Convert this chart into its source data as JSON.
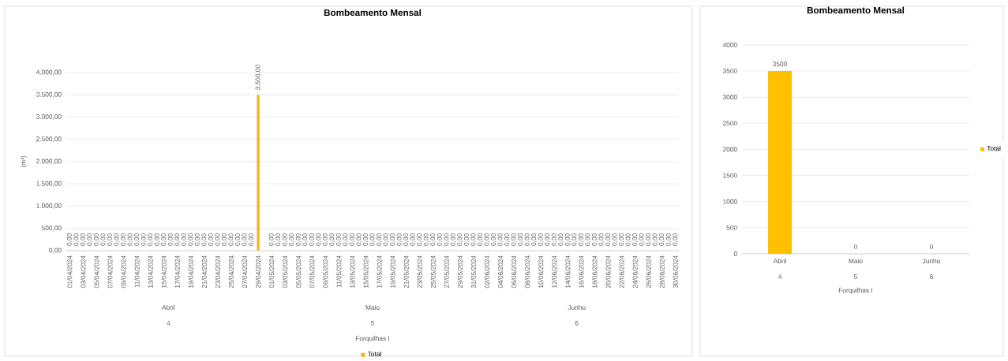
{
  "chart_data": [
    {
      "type": "bar",
      "title": "Bombeamento Mensal",
      "ylabel": "(m³)",
      "xlabel": "Forquilhas I",
      "categories": [
        "01/04/2024",
        null,
        "03/04/2024",
        null,
        "05/04/2024",
        null,
        "07/04/2024",
        null,
        "09/04/2024",
        null,
        "11/04/2024",
        null,
        "13/04/2024",
        null,
        "15/04/2024",
        null,
        "17/04/2024",
        null,
        "19/04/2024",
        null,
        "21/04/2024",
        null,
        "23/04/2024",
        null,
        "25/04/2024",
        null,
        "27/04/2024",
        null,
        "29/04/2024",
        null,
        "01/05/2024",
        null,
        "03/05/2024",
        null,
        "05/05/2024",
        null,
        "07/05/2024",
        null,
        "09/05/2024",
        null,
        "11/05/2024",
        null,
        "13/05/2024",
        null,
        "15/05/2024",
        null,
        "17/05/2024",
        null,
        "19/05/2024",
        null,
        "21/05/2024",
        null,
        "23/05/2024",
        null,
        "25/05/2024",
        null,
        "27/05/2024",
        null,
        "29/05/2024",
        null,
        "31/05/2024",
        null,
        "02/06/2024",
        null,
        "04/06/2024",
        null,
        "06/06/2024",
        null,
        "08/06/2024",
        null,
        "10/06/2024",
        null,
        "12/06/2024",
        null,
        "14/06/2024",
        null,
        "16/06/2024",
        null,
        "18/06/2024",
        null,
        "20/06/2024",
        null,
        "22/06/2024",
        null,
        "24/06/2024",
        null,
        "26/06/2024",
        null,
        "28/06/2024",
        null,
        "30/06/2024"
      ],
      "series": [
        {
          "name": "Total",
          "color": "#f5b01a",
          "values": [
            0,
            0,
            0,
            0,
            0,
            0,
            0,
            0,
            0,
            0,
            0,
            0,
            0,
            0,
            0,
            0,
            0,
            0,
            0,
            0,
            0,
            0,
            0,
            0,
            0,
            0,
            0,
            0,
            3500,
            null,
            0,
            0,
            0,
            0,
            0,
            0,
            0,
            0,
            0,
            0,
            0,
            0,
            0,
            0,
            0,
            0,
            0,
            0,
            0,
            0,
            0,
            0,
            0,
            0,
            0,
            0,
            0,
            0,
            0,
            0,
            0,
            0,
            0,
            0,
            0,
            0,
            0,
            0,
            0,
            0,
            0,
            0,
            0,
            0,
            0,
            0,
            0,
            0,
            0,
            0,
            0,
            0,
            0,
            0,
            0,
            0,
            0,
            0,
            0,
            0,
            0
          ],
          "value_labels": [
            "0,00",
            "0,00",
            "0,00",
            "0,00",
            "0,00",
            "0,00",
            "0,00",
            "0,00",
            "0,00",
            "0,00",
            "0,00",
            "0,00",
            "0,00",
            "0,00",
            "0,00",
            "0,00",
            "0,00",
            "0,00",
            "0,00",
            "0,00",
            "0,00",
            "0,00",
            "0,00",
            "0,00",
            "0,00",
            "0,00",
            "0,00",
            "0,00",
            "3.500,00",
            null,
            "0,00",
            "0,00",
            "0,00",
            "0,00",
            "0,00",
            "0,00",
            "0,00",
            "0,00",
            "0,00",
            "0,00",
            "0,00",
            "0,00",
            "0,00",
            "0,00",
            "0,00",
            "0,00",
            "0,00",
            "0,00",
            "0,00",
            "0,00",
            "0,00",
            "0,00",
            "0,00",
            "0,00",
            "0,00",
            "0,00",
            "0,00",
            "0,00",
            "0,00",
            "0,00",
            "0,00",
            "0,00",
            "0,00",
            "0,00",
            "0,00",
            "0,00",
            "0,00",
            "0,00",
            "0,00",
            "0,00",
            "0,00",
            "0,00",
            "0,00",
            "0,00",
            "0,00",
            "0,00",
            "0,00",
            "0,00",
            "0,00",
            "0,00",
            "0,00",
            "0,00",
            "0,00",
            "0,00",
            "0,00",
            "0,00",
            "0,00",
            "0,00",
            "0,00",
            "0,00",
            "0,00"
          ]
        }
      ],
      "ylim": [
        0,
        4000
      ],
      "yticks": [
        {
          "value": 0,
          "label": "0,00"
        },
        {
          "value": 500,
          "label": "500,00"
        },
        {
          "value": 1000,
          "label": "1.000,00"
        },
        {
          "value": 1500,
          "label": "1.500,00"
        },
        {
          "value": 2000,
          "label": "2.000,00"
        },
        {
          "value": 2500,
          "label": "2.500,00"
        },
        {
          "value": 3000,
          "label": "3.000,00"
        },
        {
          "value": 3500,
          "label": "3.500,00"
        },
        {
          "value": 4000,
          "label": "4.000,00"
        }
      ],
      "annotations": [
        "Abril",
        "4",
        "Maio",
        "5",
        "Junho",
        "6"
      ],
      "grid": "y",
      "legend": "bottom"
    },
    {
      "type": "bar",
      "title": "Bombeamento Mensal",
      "xlabel": "Forquilhas I",
      "categories": [
        "Abril",
        "Maio",
        "Junho"
      ],
      "series": [
        {
          "name": "Total",
          "color": "#ffc000",
          "values": [
            3500,
            0,
            0
          ]
        }
      ],
      "ylim": [
        0,
        4000
      ],
      "yticks": [
        0,
        500,
        1000,
        1500,
        2000,
        2500,
        3000,
        3500,
        4000
      ],
      "annotations": [
        "4",
        "5",
        "6"
      ],
      "data_labels": true,
      "grid": "y",
      "legend": "right"
    }
  ]
}
